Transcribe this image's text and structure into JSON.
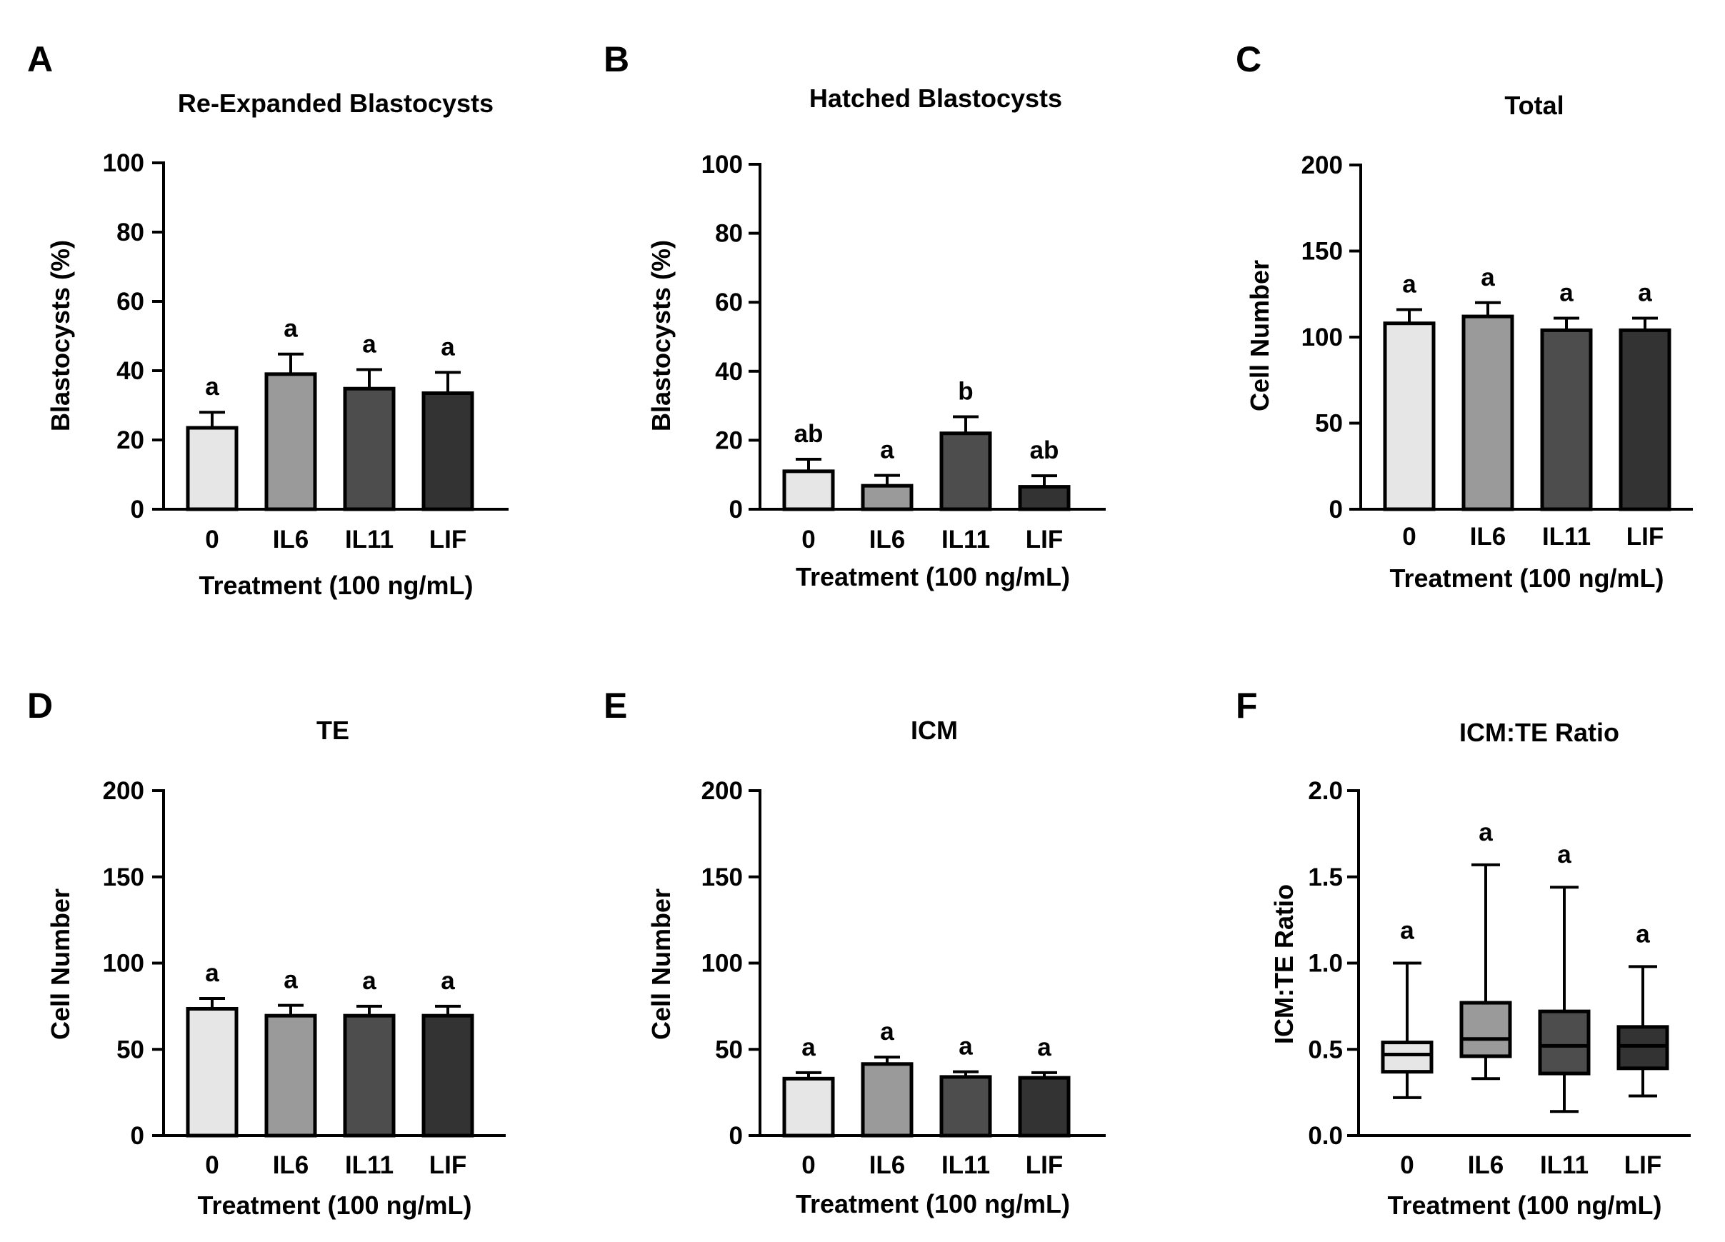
{
  "chart_data": [
    {
      "panel": "A",
      "type": "bar",
      "title": "Re-Expanded Blastocysts",
      "xlabel": "Treatment (100 ng/mL)",
      "ylabel": "Blastocysts (%)",
      "ylim": [
        0,
        100
      ],
      "yticks": [
        "0",
        "20",
        "40",
        "60",
        "80",
        "100"
      ],
      "categories": [
        "0",
        "IL6",
        "IL11",
        "LIF"
      ],
      "values": [
        23.5,
        39,
        34.8,
        33.5
      ],
      "errors": [
        4.5,
        5.8,
        5.5,
        6
      ],
      "significance": [
        "a",
        "a",
        "a",
        "a"
      ],
      "colors": [
        "#e6e6e6",
        "#9a9a9a",
        "#4d4d4d",
        "#333333"
      ]
    },
    {
      "panel": "B",
      "type": "bar",
      "title": "Hatched Blastocysts",
      "xlabel": "Treatment (100 ng/mL)",
      "ylabel": "Blastocysts (%)",
      "ylim": [
        0,
        100
      ],
      "yticks": [
        "0",
        "20",
        "40",
        "60",
        "80",
        "100"
      ],
      "categories": [
        "0",
        "IL6",
        "IL11",
        "LIF"
      ],
      "values": [
        11,
        6.8,
        22,
        6.5
      ],
      "errors": [
        3.5,
        3,
        4.8,
        3.2
      ],
      "significance": [
        "ab",
        "a",
        "b",
        "ab"
      ],
      "colors": [
        "#e6e6e6",
        "#9a9a9a",
        "#4d4d4d",
        "#333333"
      ]
    },
    {
      "panel": "C",
      "type": "bar",
      "title": "Total",
      "xlabel": "Treatment (100 ng/mL)",
      "ylabel": "Cell Number",
      "ylim": [
        0,
        200
      ],
      "yticks": [
        "0",
        "50",
        "100",
        "150",
        "200"
      ],
      "categories": [
        "0",
        "IL6",
        "IL11",
        "LIF"
      ],
      "values": [
        108,
        112,
        104,
        104
      ],
      "errors": [
        8,
        8,
        7,
        7
      ],
      "significance": [
        "a",
        "a",
        "a",
        "a"
      ],
      "colors": [
        "#e6e6e6",
        "#9a9a9a",
        "#4d4d4d",
        "#333333"
      ]
    },
    {
      "panel": "D",
      "type": "bar",
      "title": "TE",
      "xlabel": "Treatment (100 ng/mL)",
      "ylabel": "Cell Number",
      "ylim": [
        0,
        200
      ],
      "yticks": [
        "0",
        "50",
        "100",
        "150",
        "200"
      ],
      "categories": [
        "0",
        "IL6",
        "IL11",
        "LIF"
      ],
      "values": [
        73.5,
        69.5,
        69.5,
        69.5
      ],
      "errors": [
        6,
        6,
        5.5,
        5.5
      ],
      "significance": [
        "a",
        "a",
        "a",
        "a"
      ],
      "colors": [
        "#e6e6e6",
        "#9a9a9a",
        "#4d4d4d",
        "#333333"
      ]
    },
    {
      "panel": "E",
      "type": "bar",
      "title": "ICM",
      "xlabel": "Treatment (100 ng/mL)",
      "ylabel": "Cell Number",
      "ylim": [
        0,
        200
      ],
      "yticks": [
        "0",
        "50",
        "100",
        "150",
        "200"
      ],
      "categories": [
        "0",
        "IL6",
        "IL11",
        "LIF"
      ],
      "values": [
        33,
        41.5,
        34,
        33.5
      ],
      "errors": [
        3.5,
        4,
        3,
        3
      ],
      "significance": [
        "a",
        "a",
        "a",
        "a"
      ],
      "colors": [
        "#e6e6e6",
        "#9a9a9a",
        "#4d4d4d",
        "#333333"
      ]
    },
    {
      "panel": "F",
      "type": "box",
      "title": "ICM:TE Ratio",
      "xlabel": "Treatment (100 ng/mL)",
      "ylabel": "ICM:TE Ratio",
      "ylim": [
        0,
        2
      ],
      "yticks": [
        "0.0",
        "0.5",
        "1.0",
        "1.5",
        "2.0"
      ],
      "categories": [
        "0",
        "IL6",
        "IL11",
        "LIF"
      ],
      "boxes": [
        {
          "min": 0.22,
          "q1": 0.37,
          "median": 0.47,
          "q3": 0.54,
          "max": 1.0
        },
        {
          "min": 0.33,
          "q1": 0.46,
          "median": 0.56,
          "q3": 0.77,
          "max": 1.57
        },
        {
          "min": 0.14,
          "q1": 0.36,
          "median": 0.52,
          "q3": 0.72,
          "max": 1.44
        },
        {
          "min": 0.23,
          "q1": 0.39,
          "median": 0.52,
          "q3": 0.63,
          "max": 0.98
        }
      ],
      "significance": [
        "a",
        "a",
        "a",
        "a"
      ],
      "colors": [
        "#e6e6e6",
        "#9a9a9a",
        "#4d4d4d",
        "#333333"
      ]
    }
  ]
}
